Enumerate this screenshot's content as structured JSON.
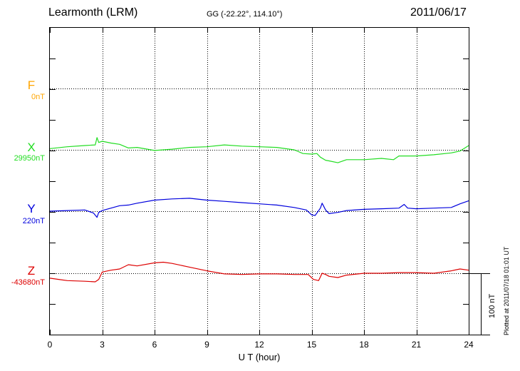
{
  "header": {
    "station": "Learmonth (LRM)",
    "coords": "GG (-22.22°, 114.10°)",
    "date": "2011/06/17"
  },
  "footer": {
    "plotted": "Plotted at 2011/07/18 01:01 UT"
  },
  "chart_data": {
    "type": "line",
    "title": "Learmonth (LRM)",
    "subtitle": "GG (-22.22°, 114.10°)",
    "xlabel": "U T (hour)",
    "xlim": [
      0,
      24
    ],
    "x_ticks": [
      0,
      3,
      6,
      9,
      12,
      15,
      18,
      21,
      24
    ],
    "x_tick_labels": [
      "0",
      "3",
      "6",
      "9",
      "12",
      "15",
      "18",
      "21",
      "24"
    ],
    "grid": true,
    "scale_bar": {
      "label": "100 nT",
      "value_nT": 100
    },
    "series": [
      {
        "name": "F",
        "baseline_label": "0nT",
        "color": "#ffa500",
        "x": [],
        "y": []
      },
      {
        "name": "X",
        "baseline_label": "29950nT",
        "color": "#22dd22",
        "x": [
          0,
          1,
          2,
          2.6,
          2.7,
          2.8,
          3,
          3.5,
          4,
          4.5,
          5,
          6,
          7,
          8,
          9,
          10,
          11,
          12,
          13,
          14,
          14.5,
          15,
          15.3,
          15.5,
          15.8,
          16,
          16.5,
          17,
          18,
          19,
          19.7,
          20,
          21,
          22,
          23,
          23.5,
          24
        ],
        "y": [
          2,
          5,
          7,
          8,
          20,
          12,
          14,
          11,
          9,
          3,
          4,
          -1,
          1,
          4,
          5,
          8,
          6,
          5,
          4,
          0,
          -6,
          -7,
          -6,
          -12,
          -17,
          -18,
          -21,
          -16,
          -16,
          -14,
          -16,
          -10,
          -10,
          -8,
          -5,
          -2,
          7
        ]
      },
      {
        "name": "Y",
        "baseline_label": "220nT",
        "color": "#0000dd",
        "x": [
          0,
          1,
          2,
          2.5,
          2.7,
          2.8,
          3,
          3.5,
          4,
          4.5,
          5,
          6,
          7,
          8,
          9,
          10,
          11,
          12,
          13,
          14,
          14.7,
          15,
          15.2,
          15.5,
          15.6,
          15.8,
          16,
          16.5,
          17,
          18,
          19,
          20,
          20.3,
          20.5,
          21,
          22,
          23,
          23.5,
          24
        ],
        "y": [
          0,
          1,
          2,
          -3,
          -10,
          -2,
          1,
          5,
          9,
          10,
          13,
          18,
          20,
          21,
          18,
          16,
          14,
          12,
          10,
          6,
          2,
          -6,
          -7,
          5,
          13,
          2,
          -4,
          -2,
          1,
          3,
          4,
          5,
          11,
          5,
          4,
          5,
          6,
          12,
          17
        ]
      },
      {
        "name": "Z",
        "baseline_label": "-43680nT",
        "color": "#dd0000",
        "x": [
          0,
          0.5,
          1,
          2,
          2.6,
          2.8,
          3,
          3.5,
          4,
          4.5,
          5,
          6,
          6.5,
          7,
          8,
          9,
          10,
          11,
          12,
          13,
          14,
          14.8,
          15.1,
          15.4,
          15.6,
          15.8,
          16,
          16.5,
          17,
          18,
          19,
          20,
          21,
          22,
          23,
          23.5,
          24
        ],
        "y": [
          -8,
          -10,
          -12,
          -13,
          -14,
          -10,
          2,
          5,
          7,
          14,
          12,
          17,
          18,
          16,
          10,
          4,
          -1,
          -2,
          -1,
          -1,
          -2,
          -2,
          -10,
          -12,
          0,
          -2,
          -5,
          -7,
          -3,
          0,
          0,
          1,
          1,
          0,
          4,
          7,
          5
        ]
      }
    ]
  }
}
